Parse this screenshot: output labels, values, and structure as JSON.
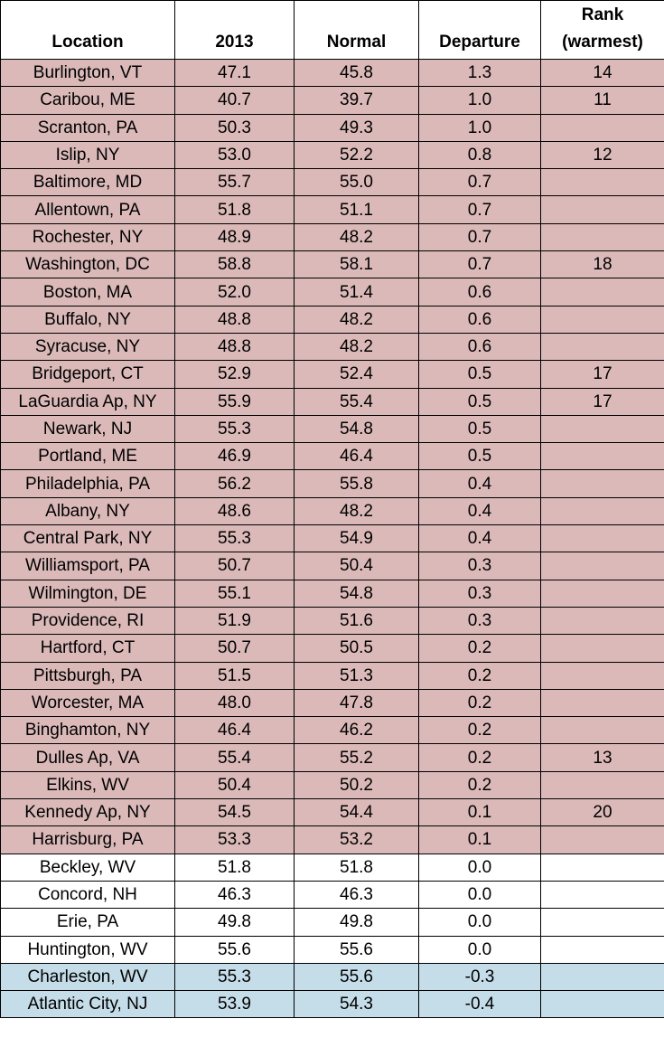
{
  "table": {
    "headers": [
      "Location",
      "2013",
      "Normal",
      "Departure",
      "Rank (warmest)"
    ],
    "rows": [
      [
        "Burlington, VT",
        "47.1",
        "45.8",
        "1.3",
        "14"
      ],
      [
        "Caribou, ME",
        "40.7",
        "39.7",
        "1.0",
        "11"
      ],
      [
        "Scranton, PA",
        "50.3",
        "49.3",
        "1.0",
        null
      ],
      [
        "Islip, NY",
        "53.0",
        "52.2",
        "0.8",
        "12"
      ],
      [
        "Baltimore, MD",
        "55.7",
        "55.0",
        "0.7",
        null
      ],
      [
        "Allentown, PA",
        "51.8",
        "51.1",
        "0.7",
        null
      ],
      [
        "Rochester, NY",
        "48.9",
        "48.2",
        "0.7",
        null
      ],
      [
        "Washington, DC",
        "58.8",
        "58.1",
        "0.7",
        "18"
      ],
      [
        "Boston, MA",
        "52.0",
        "51.4",
        "0.6",
        null
      ],
      [
        "Buffalo, NY",
        "48.8",
        "48.2",
        "0.6",
        null
      ],
      [
        "Syracuse, NY",
        "48.8",
        "48.2",
        "0.6",
        null
      ],
      [
        "Bridgeport, CT",
        "52.9",
        "52.4",
        "0.5",
        "17"
      ],
      [
        "LaGuardia Ap, NY",
        "55.9",
        "55.4",
        "0.5",
        "17"
      ],
      [
        "Newark, NJ",
        "55.3",
        "54.8",
        "0.5",
        null
      ],
      [
        "Portland, ME",
        "46.9",
        "46.4",
        "0.5",
        null
      ],
      [
        "Philadelphia, PA",
        "56.2",
        "55.8",
        "0.4",
        null
      ],
      [
        "Albany, NY",
        "48.6",
        "48.2",
        "0.4",
        null
      ],
      [
        "Central Park, NY",
        "55.3",
        "54.9",
        "0.4",
        null
      ],
      [
        "Williamsport, PA",
        "50.7",
        "50.4",
        "0.3",
        null
      ],
      [
        "Wilmington, DE",
        "55.1",
        "54.8",
        "0.3",
        null
      ],
      [
        "Providence, RI",
        "51.9",
        "51.6",
        "0.3",
        null
      ],
      [
        "Hartford, CT",
        "50.7",
        "50.5",
        "0.2",
        null
      ],
      [
        "Pittsburgh, PA",
        "51.5",
        "51.3",
        "0.2",
        null
      ],
      [
        "Worcester, MA",
        "48.0",
        "47.8",
        "0.2",
        null
      ],
      [
        "Binghamton, NY",
        "46.4",
        "46.2",
        "0.2",
        null
      ],
      [
        "Dulles Ap, VA",
        "55.4",
        "55.2",
        "0.2",
        "13"
      ],
      [
        "Elkins, WV",
        "50.4",
        "50.2",
        "0.2",
        null
      ],
      [
        "Kennedy Ap, NY",
        "54.5",
        "54.4",
        "0.1",
        "20"
      ],
      [
        "Harrisburg, PA",
        "53.3",
        "53.2",
        "0.1",
        null
      ],
      [
        "Beckley, WV",
        "51.8",
        "51.8",
        "0.0",
        null
      ],
      [
        "Concord, NH",
        "46.3",
        "46.3",
        "0.0",
        null
      ],
      [
        "Erie, PA",
        "49.8",
        "49.8",
        "0.0",
        null
      ],
      [
        "Huntington, WV",
        "55.6",
        "55.6",
        "0.0",
        null
      ],
      [
        "Charleston, WV",
        "55.3",
        "55.6",
        "-0.3",
        null
      ],
      [
        "Atlantic City, NJ",
        "53.9",
        "54.3",
        "-0.4",
        null
      ]
    ],
    "row_colors": [
      "#dbb9b9",
      "#dbb9b9",
      "#dbb9b9",
      "#dbb9b9",
      "#dbb9b9",
      "#dbb9b9",
      "#dbb9b9",
      "#dbb9b9",
      "#dbb9b9",
      "#dbb9b9",
      "#dbb9b9",
      "#dbb9b9",
      "#dbb9b9",
      "#dbb9b9",
      "#dbb9b9",
      "#dbb9b9",
      "#dbb9b9",
      "#dbb9b9",
      "#dbb9b9",
      "#dbb9b9",
      "#dbb9b9",
      "#dbb9b9",
      "#dbb9b9",
      "#dbb9b9",
      "#dbb9b9",
      "#dbb9b9",
      "#dbb9b9",
      "#dbb9b9",
      "#dbb9b9",
      "#ffffff",
      "#ffffff",
      "#ffffff",
      "#ffffff",
      "#c5dde8",
      "#c5dde8"
    ]
  }
}
